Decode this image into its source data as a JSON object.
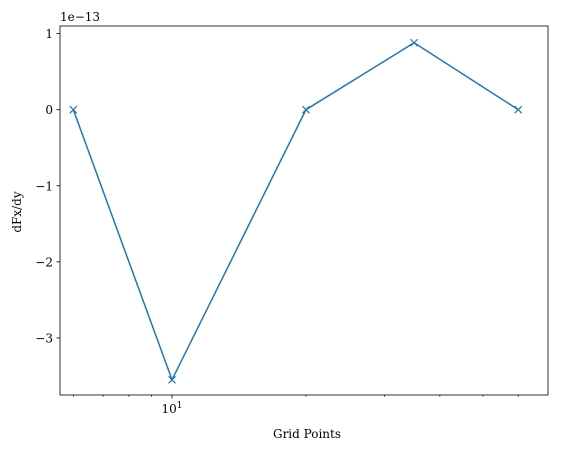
{
  "chart_data": {
    "type": "line",
    "title": "",
    "xlabel": "Grid Points",
    "ylabel": "dFx/dy",
    "x_scale": "log",
    "xlim": [
      5.6,
      70
    ],
    "ylim": [
      -3.75e-13,
      1.1e-13
    ],
    "y_offset_label": "1e−13",
    "y_ticks": [
      {
        "value": 1e-13,
        "label": "1"
      },
      {
        "value": 0,
        "label": "0"
      },
      {
        "value": -1e-13,
        "label": "−1"
      },
      {
        "value": -2e-13,
        "label": "−2"
      },
      {
        "value": -3e-13,
        "label": "−3"
      }
    ],
    "x_major_ticks": [
      {
        "value": 10,
        "label": "10",
        "exponent": "1"
      }
    ],
    "x_minor_ticks": [
      6,
      7,
      8,
      9,
      20,
      30,
      40,
      50,
      60
    ],
    "grid": false,
    "marker": "x",
    "line_color": "#1f77b4",
    "series": [
      {
        "x": [
          6,
          10,
          20,
          35,
          60
        ],
        "y": [
          0,
          -3.55e-13,
          0,
          8.8e-14,
          0
        ]
      }
    ]
  }
}
